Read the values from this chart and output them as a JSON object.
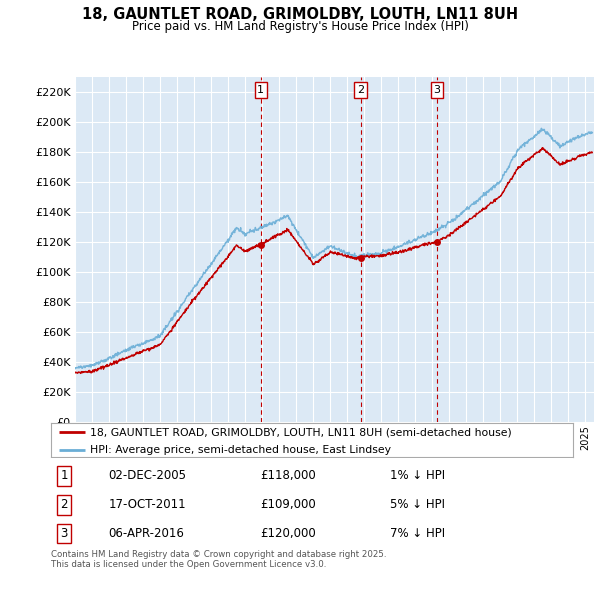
{
  "title": "18, GAUNTLET ROAD, GRIMOLDBY, LOUTH, LN11 8UH",
  "subtitle": "Price paid vs. HM Land Registry's House Price Index (HPI)",
  "ylim": [
    0,
    230000
  ],
  "yticks": [
    0,
    20000,
    40000,
    60000,
    80000,
    100000,
    120000,
    140000,
    160000,
    180000,
    200000,
    220000
  ],
  "xlim_start": 1995.0,
  "xlim_end": 2025.5,
  "hpi_color": "#6aaed6",
  "sale_color": "#c00000",
  "vline_color": "#c00000",
  "background_color": "#dce9f5",
  "grid_color": "#ffffff",
  "legend_entries": [
    "18, GAUNTLET ROAD, GRIMOLDBY, LOUTH, LN11 8UH (semi-detached house)",
    "HPI: Average price, semi-detached house, East Lindsey"
  ],
  "sales": [
    {
      "number": 1,
      "date_str": "02-DEC-2005",
      "price": 118000,
      "hpi_diff": "1% ↓ HPI",
      "x_year": 2005.92
    },
    {
      "number": 2,
      "date_str": "17-OCT-2011",
      "price": 109000,
      "hpi_diff": "5% ↓ HPI",
      "x_year": 2011.79
    },
    {
      "number": 3,
      "date_str": "06-APR-2016",
      "price": 120000,
      "hpi_diff": "7% ↓ HPI",
      "x_year": 2016.27
    }
  ],
  "footer": "Contains HM Land Registry data © Crown copyright and database right 2025.\nThis data is licensed under the Open Government Licence v3.0."
}
